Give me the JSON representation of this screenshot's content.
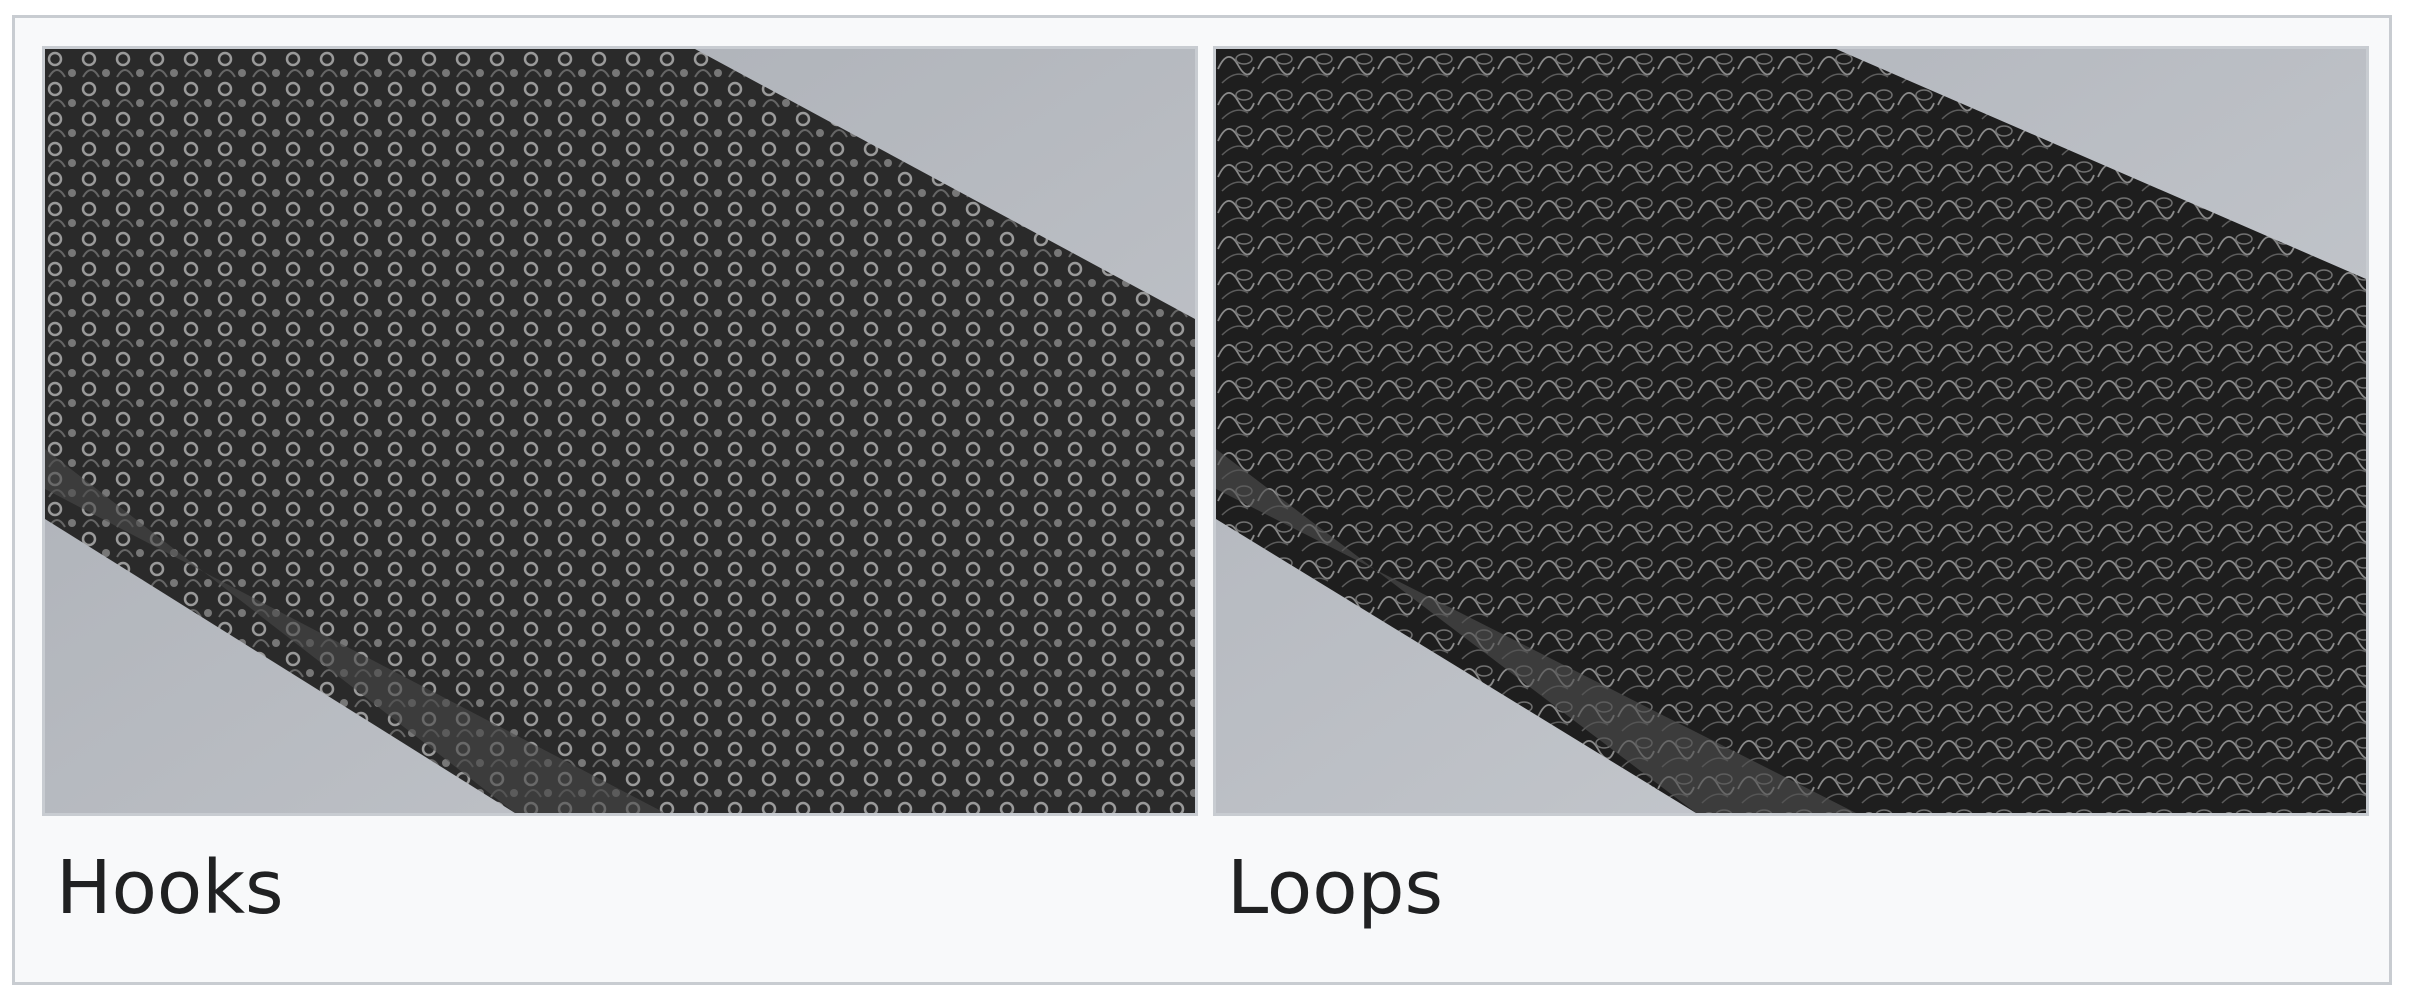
{
  "gallery": {
    "items": [
      {
        "caption": "Hooks"
      },
      {
        "caption": "Loops"
      }
    ]
  }
}
